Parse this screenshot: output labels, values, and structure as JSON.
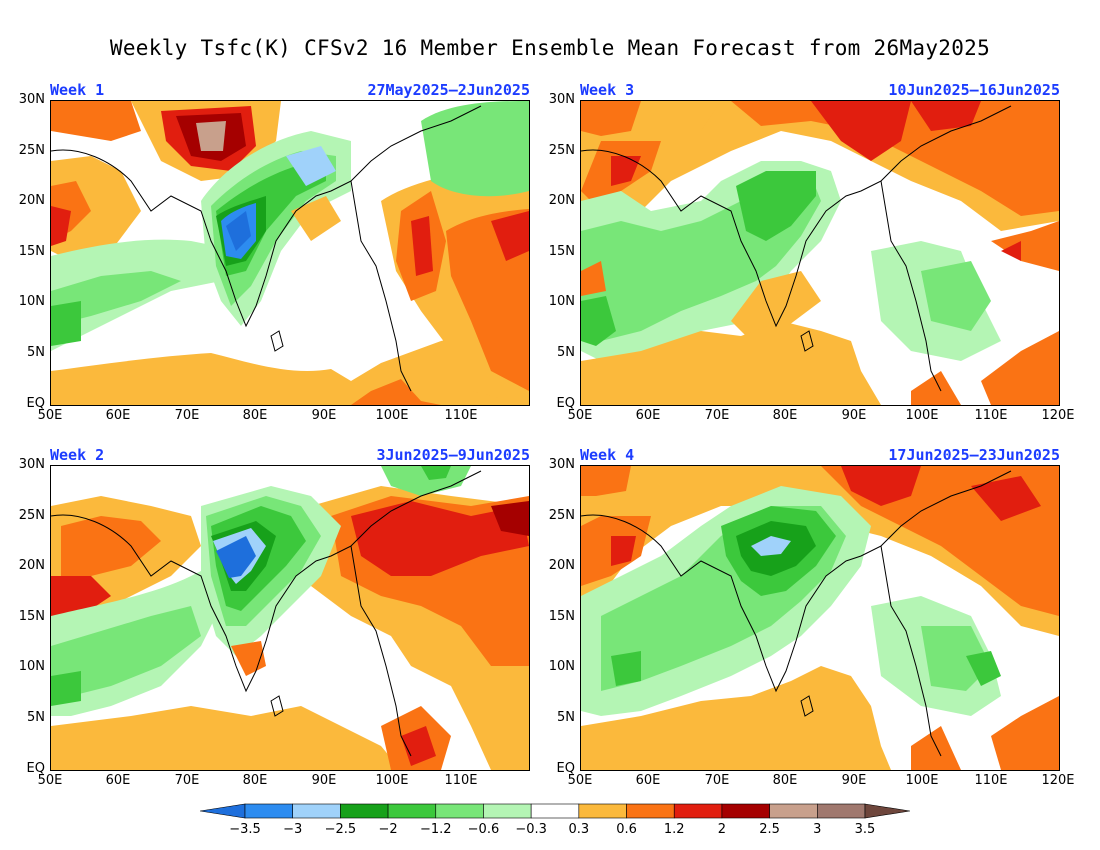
{
  "title": "Weekly Tsfc(K) CFSv2 16 Member Ensemble Mean Forecast from 26May2025",
  "axes": {
    "lat_labels": [
      "30N",
      "25N",
      "20N",
      "15N",
      "10N",
      "5N",
      "EQ"
    ],
    "lon_labels": [
      "50E",
      "60E",
      "70E",
      "80E",
      "90E",
      "100E",
      "110E",
      "120E"
    ]
  },
  "panels": [
    {
      "label": "Week 1",
      "dates": "27May2025–2Jun2025"
    },
    {
      "label": "Week 3",
      "dates": "10Jun2025–16Jun2025"
    },
    {
      "label": "Week 2",
      "dates": "3Jun2025–9Jun2025"
    },
    {
      "label": "Week 4",
      "dates": "17Jun2025–23Jun2025"
    }
  ],
  "colorbar": {
    "labels": [
      "−3.5",
      "−3",
      "−2.5",
      "−2",
      "−1.2",
      "−0.6",
      "−0.3",
      "0.3",
      "0.6",
      "1.2",
      "2",
      "2.5",
      "3",
      "3.5"
    ],
    "colors": [
      "#1e6fdc",
      "#2d8cf0",
      "#a0d2fa",
      "#17a11a",
      "#3cc83c",
      "#78e678",
      "#b4f5b4",
      "#ffffff",
      "#fbb93c",
      "#fa7314",
      "#e11e0f",
      "#a50000",
      "#c8a08c",
      "#a0786e",
      "#6e463c"
    ]
  },
  "colors": {
    "title_text": "#000000",
    "panel_label": "#1c3cff",
    "coast": "#000000"
  }
}
